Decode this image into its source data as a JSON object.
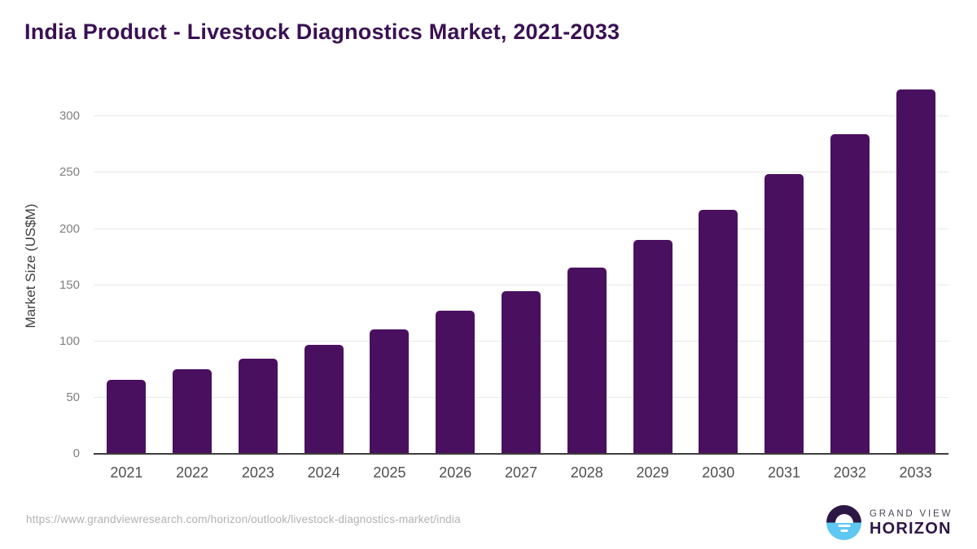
{
  "title": "India Product - Livestock Diagnostics Market, 2021-2033",
  "chart_data": {
    "type": "bar",
    "title": "India Product - Livestock Diagnostics Market, 2021-2033",
    "categories": [
      "2021",
      "2022",
      "2023",
      "2024",
      "2025",
      "2026",
      "2027",
      "2028",
      "2029",
      "2030",
      "2031",
      "2032",
      "2033"
    ],
    "values": [
      66,
      75,
      85,
      97,
      111,
      127,
      145,
      166,
      190,
      217,
      249,
      284,
      324
    ],
    "xlabel": "",
    "ylabel": "Market Size (US$M)",
    "ylim": [
      0,
      340
    ],
    "yticks": [
      0,
      50,
      100,
      150,
      200,
      250,
      300
    ],
    "grid": "horizontal",
    "legend_position": "none",
    "bar_color": "#4a1060"
  },
  "yaxis": {
    "label": "Market Size (US$M)"
  },
  "footer": {
    "source_url": "https://www.grandviewresearch.com/horizon/outlook/livestock-diagnostics-market/india"
  },
  "logo": {
    "top_text": "GRAND VIEW",
    "bottom_text": "HORIZON",
    "icon": "horizon-sun-icon"
  },
  "colors": {
    "bar": "#4a1060",
    "title": "#3a1053",
    "gridline": "#e8e8e8",
    "axis_line": "#3d3d3d",
    "y_tick": "#7f7f7f",
    "x_tick": "#4f4f4f",
    "source_url": "#b1b1b1",
    "logo_navy": "#2d1745",
    "logo_blue": "#5ec8f2"
  }
}
